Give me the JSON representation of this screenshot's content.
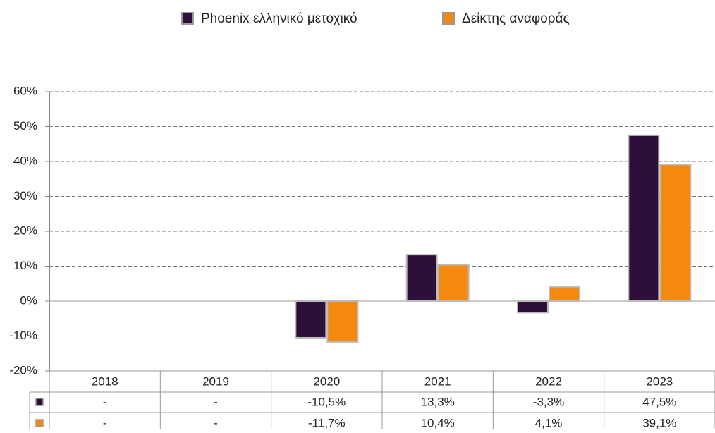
{
  "chart_data": {
    "type": "bar",
    "categories": [
      "2018",
      "2019",
      "2020",
      "2021",
      "2022",
      "2023"
    ],
    "series": [
      {
        "name": "Phoenix ελληνικό μετοχικό",
        "color": "#2e0f3a",
        "values": [
          null,
          null,
          -10.5,
          13.3,
          -3.3,
          47.5
        ],
        "value_labels": [
          "-",
          "-",
          "-10,5%",
          "13,3%",
          "-3,3%",
          "47,5%"
        ]
      },
      {
        "name": "Δείκτης αναφοράς",
        "color": "#f5880f",
        "values": [
          null,
          null,
          -11.7,
          10.4,
          4.1,
          39.1
        ],
        "value_labels": [
          "-",
          "-",
          "-11,7%",
          "10,4%",
          "4,1%",
          "39,1%"
        ]
      }
    ],
    "ylim": [
      -20,
      60
    ],
    "yticks": [
      {
        "value": -20,
        "label": "-20%"
      },
      {
        "value": -10,
        "label": "-10%"
      },
      {
        "value": 0,
        "label": "0%"
      },
      {
        "value": 10,
        "label": "10%"
      },
      {
        "value": 20,
        "label": "20%"
      },
      {
        "value": 30,
        "label": "30%"
      },
      {
        "value": 40,
        "label": "40%"
      },
      {
        "value": 50,
        "label": "50%"
      },
      {
        "value": 60,
        "label": "60%"
      }
    ],
    "grid": true,
    "legend": "top"
  }
}
